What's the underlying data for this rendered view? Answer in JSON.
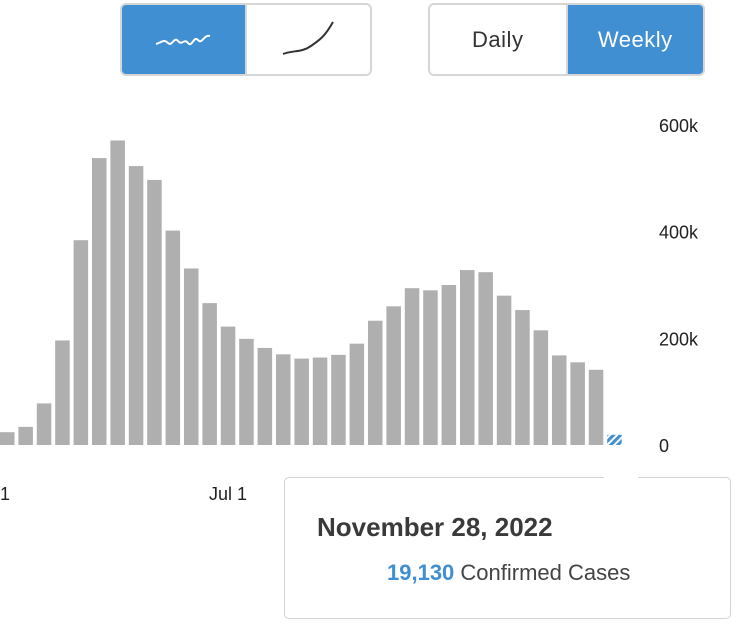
{
  "controls": {
    "scale_options": [
      {
        "icon": "linear-scale-icon",
        "active": true
      },
      {
        "icon": "log-scale-icon",
        "active": false
      }
    ],
    "period_options": [
      {
        "label": "Daily",
        "active": false
      },
      {
        "label": "Weekly",
        "active": true
      }
    ]
  },
  "colors": {
    "accent": "#3f8fd2",
    "bar": "#afafaf",
    "border": "#d6d6d6"
  },
  "chart_data": {
    "type": "bar",
    "xlabel": "",
    "ylabel": "",
    "ylim": [
      0,
      600000
    ],
    "yticks": [
      {
        "value": 0,
        "label": "0"
      },
      {
        "value": 200000,
        "label": "200k"
      },
      {
        "value": 400000,
        "label": "400k"
      },
      {
        "value": 600000,
        "label": "600k"
      }
    ],
    "xtick_labels": [
      {
        "label": "1",
        "bar_index": 0
      },
      {
        "label": "Jul 1",
        "bar_index": 12
      }
    ],
    "series": [
      {
        "values": [
          24000,
          34000,
          78000,
          196000,
          384000,
          538000,
          571000,
          523000,
          497000,
          402000,
          331000,
          266000,
          222000,
          199000,
          182000,
          170000,
          162000,
          164000,
          169000,
          190000,
          233000,
          260000,
          294000,
          290000,
          300000,
          328000,
          324000,
          280000,
          253000,
          215000,
          168000,
          155000,
          141000,
          19130
        ],
        "highlight_index": 33
      }
    ]
  },
  "tooltip": {
    "date": "November 28, 2022",
    "value": "19,130",
    "label": "Confirmed Cases"
  }
}
